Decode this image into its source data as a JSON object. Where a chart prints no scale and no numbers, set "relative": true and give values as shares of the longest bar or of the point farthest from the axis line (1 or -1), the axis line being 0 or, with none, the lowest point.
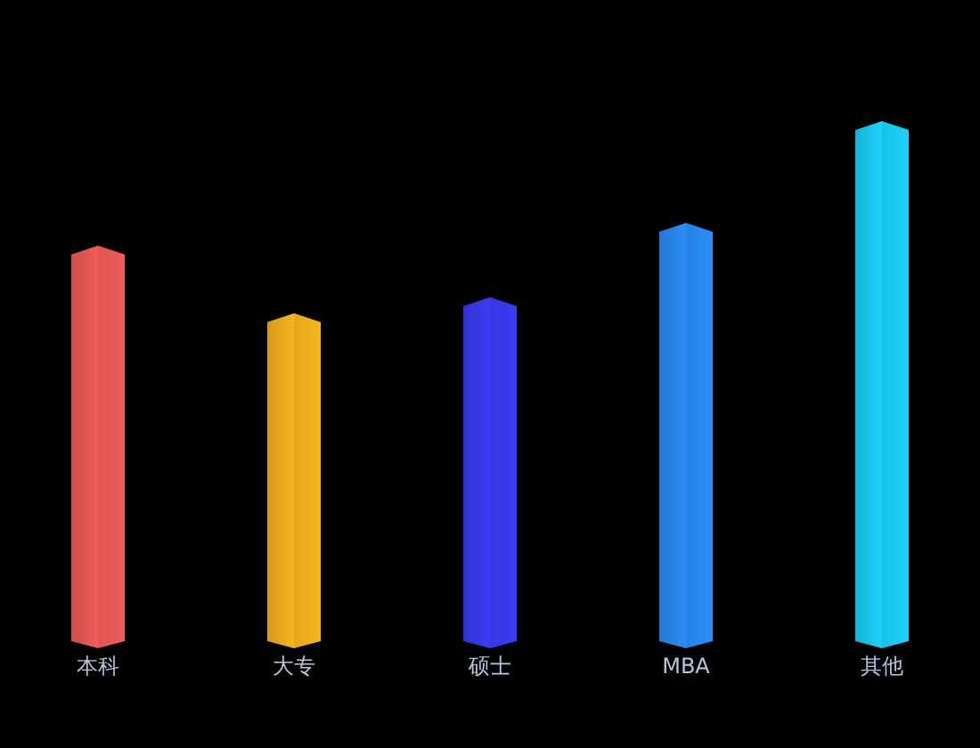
{
  "chart_data": {
    "type": "bar",
    "relative": true,
    "categories": [
      "本科",
      "大专",
      "硕士",
      "MBA",
      "其他"
    ],
    "values": [
      0.759,
      0.628,
      0.659,
      0.803,
      1
    ],
    "colors": [
      "#f25c58",
      "#f8b51e",
      "#3b3cf6",
      "#2a8ef8",
      "#1bd2fa"
    ]
  }
}
